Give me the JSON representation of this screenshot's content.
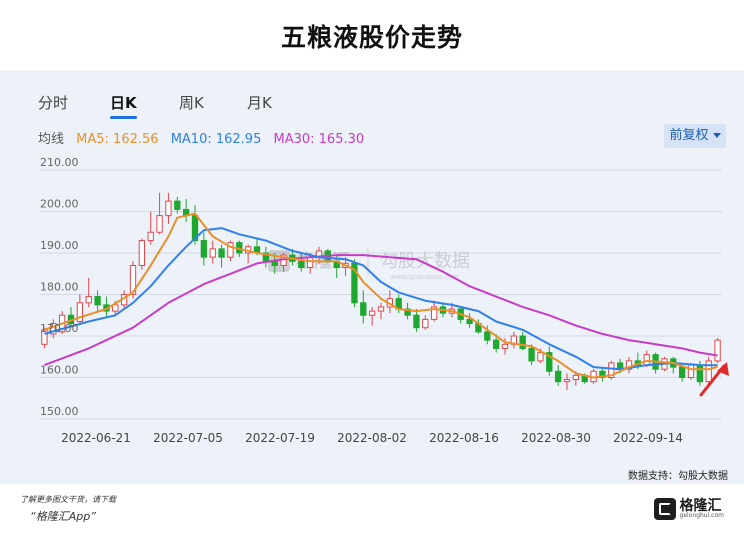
{
  "title": "五粮液股价走势",
  "tabs": [
    {
      "label": "分时",
      "active": false
    },
    {
      "label": "日K",
      "active": true
    },
    {
      "label": "周K",
      "active": false
    },
    {
      "label": "月K",
      "active": false
    }
  ],
  "legend": {
    "prefix": "均线",
    "ma5": {
      "label": "MA5: 162.56",
      "color": "#e8902a"
    },
    "ma10": {
      "label": "MA10: 162.95",
      "color": "#2f80ed"
    },
    "ma30": {
      "label": "MA30: 165.30",
      "color": "#c83bc8"
    }
  },
  "adjust_button": {
    "label": "前复权"
  },
  "watermark": {
    "brand": "格隆汇",
    "text": "勾股大数据",
    "url": "www.gogudata.com"
  },
  "source": "数据支持：勾股大数据",
  "footer": {
    "note": "了解更多图文干货，请下载",
    "app": "“格隆汇App”"
  },
  "logo": {
    "text": "格隆汇",
    "sub": "gelonghui.com"
  },
  "colors": {
    "up": "#e0484f",
    "down": "#1ea82f",
    "arrow": "#e02a2a"
  },
  "chart_data": {
    "type": "candlestick",
    "ylim": [
      150,
      210
    ],
    "yticks": [
      "150.00",
      "160.00",
      "170.00",
      "180.00",
      "190.00",
      "200.00",
      "210.00"
    ],
    "xtick_labels": [
      "2022-06-21",
      "2022-07-05",
      "2022-07-19",
      "2022-08-02",
      "2022-08-16",
      "2022-08-30",
      "2022-09-14"
    ],
    "candles": [
      [
        168,
        172,
        167,
        171.5
      ],
      [
        170.5,
        174,
        169.5,
        173
      ],
      [
        171,
        176,
        170.5,
        175
      ],
      [
        175,
        177,
        172,
        173
      ],
      [
        173.5,
        180,
        173,
        178
      ],
      [
        178,
        184,
        177,
        179.5
      ],
      [
        179.5,
        181,
        176,
        177.5
      ],
      [
        177.5,
        179.5,
        174.5,
        176
      ],
      [
        176,
        178.5,
        175,
        177.5
      ],
      [
        177.5,
        181,
        176.5,
        180
      ],
      [
        180,
        188,
        179,
        187
      ],
      [
        187,
        193.5,
        186,
        193
      ],
      [
        193,
        200,
        192,
        195
      ],
      [
        195,
        204.5,
        194.5,
        199
      ],
      [
        199,
        204.5,
        197,
        202.5
      ],
      [
        202.5,
        203.5,
        199.5,
        200.5
      ],
      [
        200.5,
        203,
        197.5,
        199
      ],
      [
        199,
        201.5,
        192,
        193
      ],
      [
        193,
        195,
        187,
        189
      ],
      [
        189,
        193,
        187.5,
        191
      ],
      [
        191,
        192,
        186.5,
        189
      ],
      [
        189,
        193,
        188,
        192.5
      ],
      [
        192.5,
        193,
        189,
        190
      ],
      [
        190,
        192,
        187.5,
        191.5
      ],
      [
        191.5,
        193.5,
        189.5,
        190
      ],
      [
        190,
        191.5,
        186.5,
        188
      ],
      [
        188,
        190,
        185,
        187
      ],
      [
        187,
        190,
        185.5,
        189.5
      ],
      [
        189.5,
        191,
        187,
        188
      ],
      [
        188,
        190,
        185.5,
        186.5
      ],
      [
        186.5,
        190,
        185,
        189
      ],
      [
        189,
        191.5,
        187.5,
        190.5
      ],
      [
        190.5,
        191,
        187.5,
        188
      ],
      [
        188,
        189.5,
        184,
        186.5
      ],
      [
        186.5,
        189,
        184.5,
        187.5
      ],
      [
        187.5,
        188.5,
        177,
        178
      ],
      [
        178,
        181,
        173,
        175
      ],
      [
        175,
        177,
        172.5,
        176
      ],
      [
        176,
        178,
        174,
        177
      ],
      [
        177,
        181,
        175.5,
        179
      ],
      [
        179,
        180,
        175.5,
        176.5
      ],
      [
        176.5,
        178,
        174,
        175
      ],
      [
        175,
        176.5,
        171,
        172
      ],
      [
        172,
        175,
        171.5,
        174
      ],
      [
        174,
        178.5,
        173.5,
        177
      ],
      [
        177,
        178,
        174.5,
        175.5
      ],
      [
        175.5,
        178,
        174.5,
        176.5
      ],
      [
        176.5,
        177,
        173,
        174
      ],
      [
        174,
        175.5,
        172,
        173
      ],
      [
        173,
        174,
        170.5,
        171
      ],
      [
        171,
        172.5,
        168,
        169
      ],
      [
        169,
        170.5,
        166,
        167
      ],
      [
        167,
        169.5,
        165.5,
        168
      ],
      [
        168,
        171,
        167,
        170
      ],
      [
        170,
        171,
        166.5,
        167
      ],
      [
        167,
        168,
        163,
        164
      ],
      [
        164,
        167,
        163.5,
        166
      ],
      [
        166,
        167.5,
        160.5,
        161.5
      ],
      [
        161.5,
        163,
        158,
        159
      ],
      [
        159,
        161,
        157,
        159.5
      ],
      [
        159.5,
        161.5,
        158,
        160.5
      ],
      [
        160.5,
        161,
        158.5,
        159
      ],
      [
        159,
        162,
        158.5,
        161.5
      ],
      [
        161.5,
        162.5,
        159,
        160
      ],
      [
        160,
        164,
        159.5,
        163.5
      ],
      [
        163.5,
        164.5,
        161,
        162
      ],
      [
        162,
        165,
        161,
        164
      ],
      [
        164,
        166,
        162,
        163
      ],
      [
        163,
        166.5,
        162.5,
        165.5
      ],
      [
        165.5,
        166,
        161,
        162
      ],
      [
        162,
        165,
        161.5,
        164.5
      ],
      [
        164.5,
        165,
        161,
        162.5
      ],
      [
        162.5,
        163.5,
        159,
        160
      ],
      [
        160,
        163.5,
        159.5,
        163
      ],
      [
        163,
        164,
        158,
        159
      ],
      [
        159,
        165,
        158.5,
        164
      ],
      [
        164,
        169.5,
        163.5,
        169
      ]
    ],
    "ma5": [
      [
        0,
        171.5
      ],
      [
        4,
        174.5
      ],
      [
        7,
        176.5
      ],
      [
        10,
        180.5
      ],
      [
        12,
        187
      ],
      [
        14,
        194
      ],
      [
        15,
        198.5
      ],
      [
        17,
        199.5
      ],
      [
        19,
        194
      ],
      [
        21,
        191.5
      ],
      [
        24,
        190
      ],
      [
        27,
        189
      ],
      [
        30,
        188
      ],
      [
        33,
        188
      ],
      [
        35,
        186
      ],
      [
        36,
        183
      ],
      [
        38,
        179
      ],
      [
        40,
        176.5
      ],
      [
        42,
        176
      ],
      [
        44,
        176.5
      ],
      [
        46,
        176
      ],
      [
        48,
        174.5
      ],
      [
        50,
        171.5
      ],
      [
        52,
        168.5
      ],
      [
        55,
        167.5
      ],
      [
        58,
        164
      ],
      [
        60,
        161
      ],
      [
        62,
        160
      ],
      [
        64,
        160.5
      ],
      [
        66,
        162.5
      ],
      [
        68,
        164
      ],
      [
        71,
        163.5
      ],
      [
        73,
        162
      ],
      [
        75,
        162
      ],
      [
        76,
        162.56
      ]
    ],
    "ma10": [
      [
        0,
        170.5
      ],
      [
        5,
        173.5
      ],
      [
        8,
        175
      ],
      [
        10,
        178
      ],
      [
        12,
        182
      ],
      [
        14,
        187
      ],
      [
        16,
        191.5
      ],
      [
        18,
        195.5
      ],
      [
        20,
        196
      ],
      [
        22,
        194.5
      ],
      [
        25,
        193
      ],
      [
        28,
        190.5
      ],
      [
        31,
        189
      ],
      [
        34,
        188.5
      ],
      [
        36,
        187
      ],
      [
        38,
        183
      ],
      [
        40,
        180.5
      ],
      [
        43,
        178.5
      ],
      [
        46,
        177.5
      ],
      [
        49,
        176
      ],
      [
        51,
        173.5
      ],
      [
        54,
        171.5
      ],
      [
        57,
        168
      ],
      [
        60,
        165
      ],
      [
        62,
        162.5
      ],
      [
        65,
        162
      ],
      [
        68,
        163
      ],
      [
        71,
        163.5
      ],
      [
        74,
        163
      ],
      [
        76,
        162.95
      ]
    ],
    "ma30": [
      [
        0,
        163
      ],
      [
        5,
        167
      ],
      [
        10,
        172
      ],
      [
        14,
        178
      ],
      [
        18,
        182.5
      ],
      [
        21,
        185
      ],
      [
        24,
        187.5
      ],
      [
        27,
        188.5
      ],
      [
        30,
        189
      ],
      [
        33,
        189.5
      ],
      [
        36,
        189.5
      ],
      [
        39,
        189
      ],
      [
        42,
        188.5
      ],
      [
        45,
        185.5
      ],
      [
        48,
        182
      ],
      [
        51,
        179.5
      ],
      [
        54,
        177
      ],
      [
        57,
        175
      ],
      [
        60,
        172.5
      ],
      [
        63,
        170.5
      ],
      [
        66,
        169
      ],
      [
        69,
        168
      ],
      [
        72,
        167
      ],
      [
        74,
        166
      ],
      [
        76,
        165.3
      ]
    ]
  }
}
